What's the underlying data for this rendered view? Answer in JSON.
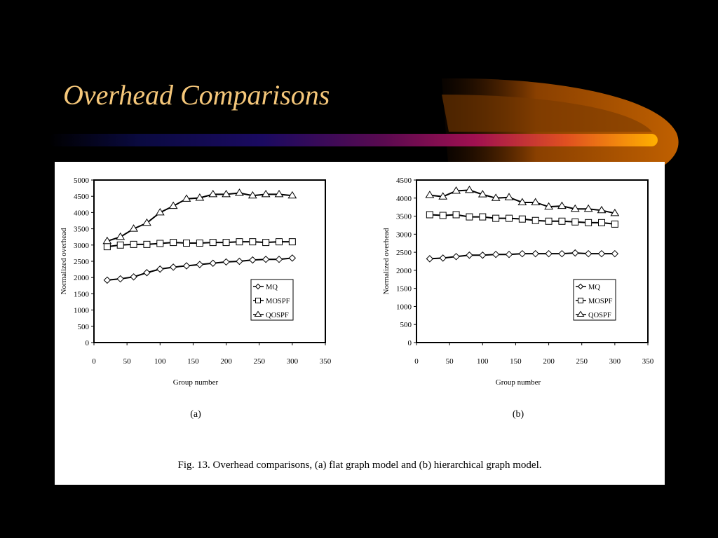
{
  "slide": {
    "title": "Overhead Comparisons",
    "title_color": "#f5c77a",
    "background": "#000000"
  },
  "figure": {
    "caption": "Fig. 13.   Overhead comparisons, (a) flat graph model and (b) hierarchical graph model."
  },
  "chart_data": [
    {
      "type": "line",
      "subfigure_label": "(a)",
      "xlabel": "Group number",
      "ylabel": "Normalized overhead",
      "xlim": [
        0,
        350
      ],
      "ylim": [
        0,
        5000
      ],
      "xticks": [
        0,
        50,
        100,
        150,
        200,
        250,
        300,
        350
      ],
      "yticks": [
        0,
        500,
        1000,
        1500,
        2000,
        2500,
        3000,
        3500,
        4000,
        4500,
        5000
      ],
      "grid": false,
      "legend_position": "bottom-right",
      "x": [
        20,
        40,
        60,
        80,
        100,
        120,
        140,
        160,
        180,
        200,
        220,
        240,
        260,
        280,
        300
      ],
      "series": [
        {
          "name": "MQ",
          "marker": "diamond",
          "values": [
            1920,
            1960,
            2020,
            2150,
            2260,
            2320,
            2360,
            2400,
            2440,
            2480,
            2500,
            2540,
            2560,
            2560,
            2600
          ]
        },
        {
          "name": "MOSPF",
          "marker": "square",
          "values": [
            2950,
            3000,
            3020,
            3020,
            3050,
            3080,
            3060,
            3060,
            3080,
            3080,
            3100,
            3100,
            3080,
            3100,
            3100
          ]
        },
        {
          "name": "QOSPF",
          "marker": "triangle",
          "values": [
            3120,
            3250,
            3500,
            3680,
            4000,
            4200,
            4420,
            4450,
            4560,
            4560,
            4600,
            4520,
            4560,
            4560,
            4520
          ]
        }
      ]
    },
    {
      "type": "line",
      "subfigure_label": "(b)",
      "xlabel": "Group number",
      "ylabel": "Normalized overhead",
      "xlim": [
        0,
        350
      ],
      "ylim": [
        0,
        4500
      ],
      "xticks": [
        0,
        50,
        100,
        150,
        200,
        250,
        300,
        350
      ],
      "yticks": [
        0,
        500,
        1000,
        1500,
        2000,
        2500,
        3000,
        3500,
        4000,
        4500
      ],
      "grid": false,
      "legend_position": "bottom-right",
      "x": [
        20,
        40,
        60,
        80,
        100,
        120,
        140,
        160,
        180,
        200,
        220,
        240,
        260,
        280,
        300
      ],
      "series": [
        {
          "name": "MQ",
          "marker": "diamond",
          "values": [
            2320,
            2340,
            2380,
            2420,
            2420,
            2440,
            2440,
            2460,
            2460,
            2460,
            2460,
            2480,
            2460,
            2460,
            2460
          ]
        },
        {
          "name": "MOSPF",
          "marker": "square",
          "values": [
            3540,
            3520,
            3540,
            3480,
            3480,
            3440,
            3440,
            3420,
            3380,
            3360,
            3360,
            3340,
            3320,
            3320,
            3280
          ]
        },
        {
          "name": "QOSPF",
          "marker": "triangle",
          "values": [
            4080,
            4040,
            4200,
            4220,
            4100,
            4000,
            4020,
            3880,
            3880,
            3760,
            3780,
            3700,
            3700,
            3660,
            3580
          ]
        }
      ]
    }
  ]
}
